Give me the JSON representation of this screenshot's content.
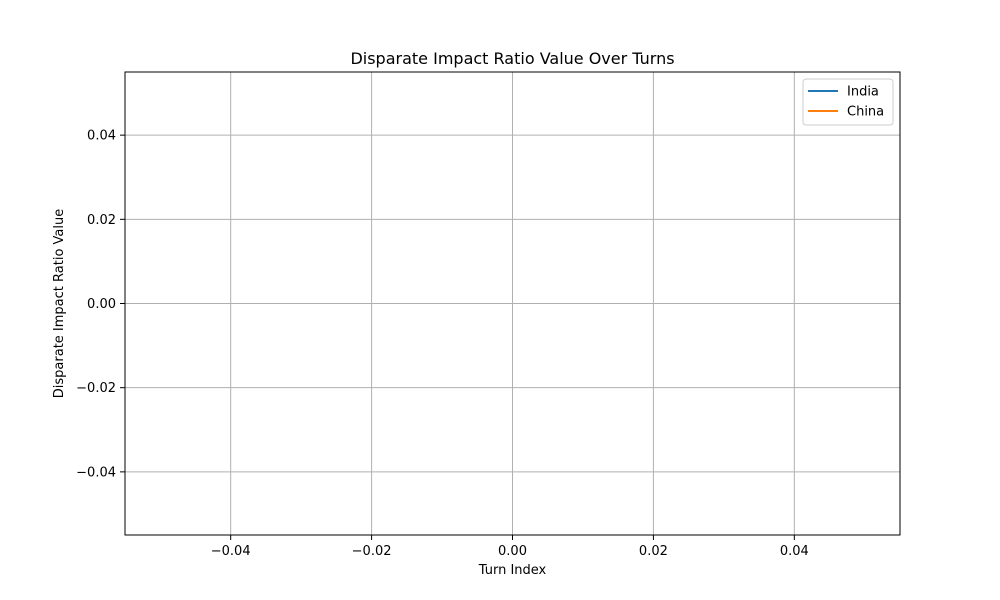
{
  "chart_data": {
    "type": "line",
    "title": "Disparate Impact Ratio Value Over Turns",
    "xlabel": "Turn Index",
    "ylabel": "Disparate Impact Ratio Value",
    "xlim": [
      -0.055,
      0.055
    ],
    "ylim": [
      -0.055,
      0.055
    ],
    "xticks": [
      -0.04,
      -0.02,
      0.0,
      0.02,
      0.04
    ],
    "yticks": [
      -0.04,
      -0.02,
      0.0,
      0.02,
      0.04
    ],
    "xtick_labels": [
      "−0.04",
      "−0.02",
      "0.00",
      "0.02",
      "0.04"
    ],
    "ytick_labels": [
      "−0.04",
      "−0.02",
      "0.00",
      "0.02",
      "0.04"
    ],
    "grid": true,
    "legend_position": "top-right",
    "series": [
      {
        "name": "India",
        "color": "#1f77b4",
        "x": [],
        "y": []
      },
      {
        "name": "China",
        "color": "#ff7f0e",
        "x": [],
        "y": []
      }
    ]
  }
}
